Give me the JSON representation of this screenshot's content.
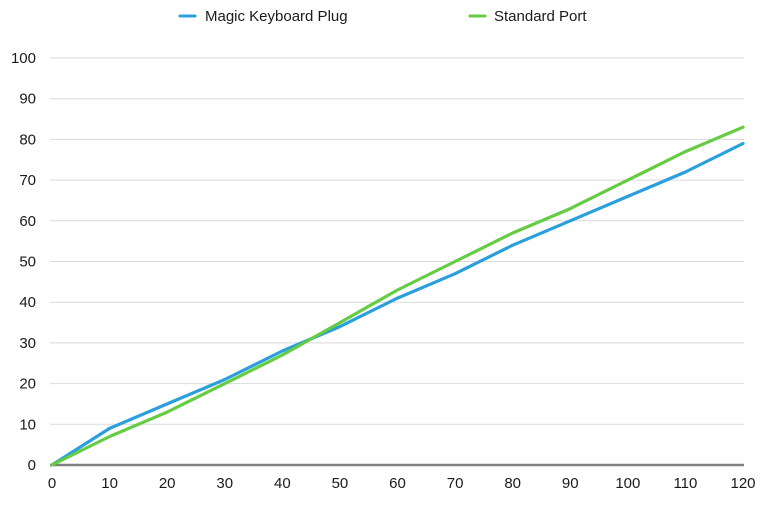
{
  "chart_data": {
    "type": "line",
    "title": "",
    "xlabel": "",
    "ylabel": "",
    "x": [
      0,
      10,
      20,
      30,
      40,
      50,
      60,
      70,
      80,
      90,
      100,
      110,
      120
    ],
    "series": [
      {
        "name": "Magic Keyboard Plug",
        "color": "#2a9fdc",
        "values": [
          0,
          9,
          15,
          21,
          28,
          34,
          41,
          47,
          54,
          60,
          66,
          72,
          79
        ]
      },
      {
        "name": "Standard Port",
        "color": "#66cc44",
        "values": [
          0,
          7,
          13,
          20,
          27,
          35,
          43,
          50,
          57,
          63,
          70,
          77,
          83
        ]
      }
    ],
    "xlim": [
      0,
      120
    ],
    "ylim": [
      0,
      100
    ],
    "x_ticks": [
      "0",
      "10",
      "20",
      "30",
      "40",
      "50",
      "60",
      "70",
      "80",
      "90",
      "100",
      "110",
      "120"
    ],
    "y_ticks": [
      "0",
      "10",
      "20",
      "30",
      "40",
      "50",
      "60",
      "70",
      "80",
      "90",
      "100"
    ],
    "grid": true,
    "legend_position": "top"
  },
  "legend": {
    "items": [
      {
        "label": "Magic Keyboard Plug",
        "color": "#2a9fdc"
      },
      {
        "label": "Standard Port",
        "color": "#66cc44"
      }
    ]
  },
  "colors": {
    "gridline": "#d9d9d9",
    "axis": "#808080"
  }
}
